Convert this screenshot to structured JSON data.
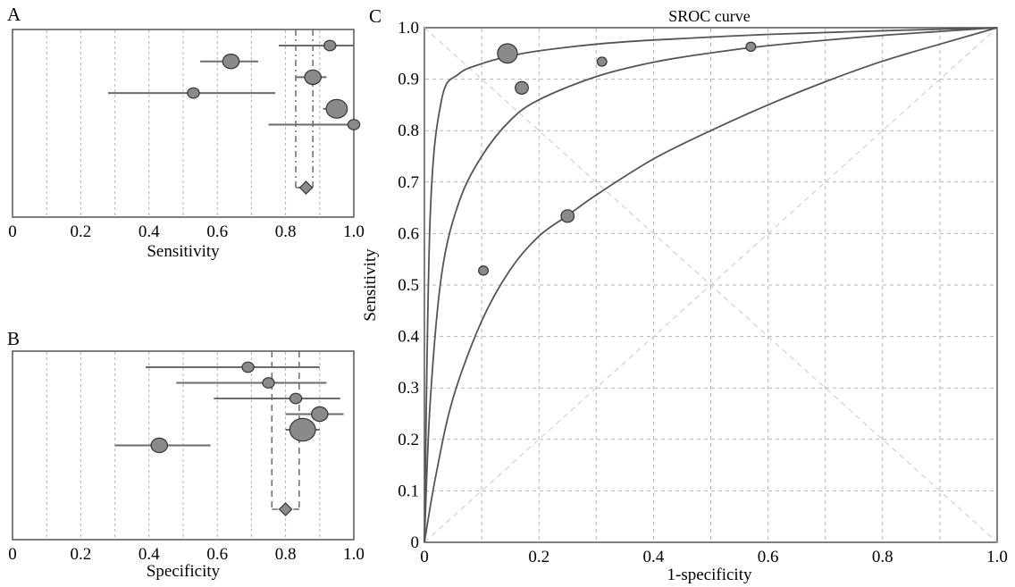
{
  "chart_data": [
    {
      "panel": "A",
      "type": "forest",
      "xlabel": "Sensitivity",
      "xlim": [
        0,
        1.0
      ],
      "xticks": [
        "0",
        "0.2",
        "0.4",
        "0.6",
        "0.8",
        "1.0"
      ],
      "studies": [
        {
          "estimate": 0.93,
          "lower": 0.78,
          "upper": 1.0,
          "weight": 1
        },
        {
          "estimate": 0.64,
          "lower": 0.55,
          "upper": 0.72,
          "weight": 2
        },
        {
          "estimate": 0.88,
          "lower": 0.83,
          "upper": 0.92,
          "weight": 2
        },
        {
          "estimate": 0.53,
          "lower": 0.28,
          "upper": 0.77,
          "weight": 1
        },
        {
          "estimate": 0.95,
          "lower": 0.91,
          "upper": 0.98,
          "weight": 3
        },
        {
          "estimate": 1.0,
          "lower": 0.75,
          "upper": 1.0,
          "weight": 1
        }
      ],
      "pooled": {
        "estimate": 0.86,
        "lower": 0.83,
        "upper": 0.88
      }
    },
    {
      "panel": "B",
      "type": "forest",
      "xlabel": "Specificity",
      "xlim": [
        0,
        1.0
      ],
      "xticks": [
        "0",
        "0.2",
        "0.4",
        "0.6",
        "0.8",
        "1.0"
      ],
      "studies": [
        {
          "estimate": 0.69,
          "lower": 0.39,
          "upper": 0.9,
          "weight": 1
        },
        {
          "estimate": 0.75,
          "lower": 0.48,
          "upper": 0.92,
          "weight": 1
        },
        {
          "estimate": 0.83,
          "lower": 0.59,
          "upper": 0.96,
          "weight": 1
        },
        {
          "estimate": 0.9,
          "lower": 0.8,
          "upper": 0.97,
          "weight": 2
        },
        {
          "estimate": 0.85,
          "lower": 0.8,
          "upper": 0.9,
          "weight": 4
        },
        {
          "estimate": 0.43,
          "lower": 0.3,
          "upper": 0.58,
          "weight": 2
        }
      ],
      "pooled": {
        "estimate": 0.8,
        "lower": 0.76,
        "upper": 0.84
      }
    },
    {
      "panel": "C",
      "type": "scatter",
      "title": "SROC curve",
      "xlabel": "1-specificity",
      "ylabel": "Sensitivity",
      "xlim": [
        0,
        1.0
      ],
      "ylim": [
        0,
        1.0
      ],
      "xticks": [
        "0",
        "0.2",
        "0.4",
        "0.6",
        "0.8",
        "1.0"
      ],
      "yticks": [
        "0",
        "0.1",
        "0.2",
        "0.3",
        "0.4",
        "0.5",
        "0.6",
        "0.7",
        "0.8",
        "0.9",
        "1.0"
      ],
      "grid": true,
      "points": [
        {
          "x": 0.145,
          "y": 0.95,
          "weight": 4
        },
        {
          "x": 0.17,
          "y": 0.883,
          "weight": 2
        },
        {
          "x": 0.31,
          "y": 0.934,
          "weight": 1
        },
        {
          "x": 0.57,
          "y": 0.963,
          "weight": 1
        },
        {
          "x": 0.25,
          "y": 0.634,
          "weight": 2
        },
        {
          "x": 0.103,
          "y": 0.528,
          "weight": 1
        }
      ],
      "curves": [
        {
          "x": [
            0,
            0.01,
            0.03,
            0.06,
            0.1,
            0.15,
            0.2,
            0.3,
            0.4,
            0.6,
            0.8,
            1.0
          ],
          "y": [
            0,
            0.63,
            0.86,
            0.91,
            0.93,
            0.945,
            0.955,
            0.968,
            0.976,
            0.987,
            0.994,
            1.0
          ]
        },
        {
          "x": [
            0,
            0.01,
            0.03,
            0.06,
            0.1,
            0.15,
            0.2,
            0.3,
            0.4,
            0.5,
            0.6,
            0.8,
            1.0
          ],
          "y": [
            0,
            0.27,
            0.52,
            0.66,
            0.75,
            0.82,
            0.86,
            0.905,
            0.933,
            0.951,
            0.965,
            0.985,
            1.0
          ]
        },
        {
          "x": [
            0,
            0.02,
            0.05,
            0.1,
            0.15,
            0.2,
            0.25,
            0.3,
            0.4,
            0.5,
            0.6,
            0.7,
            0.8,
            0.9,
            1.0
          ],
          "y": [
            0,
            0.13,
            0.28,
            0.43,
            0.53,
            0.595,
            0.635,
            0.675,
            0.745,
            0.8,
            0.85,
            0.895,
            0.935,
            0.968,
            1.0
          ]
        }
      ]
    }
  ]
}
